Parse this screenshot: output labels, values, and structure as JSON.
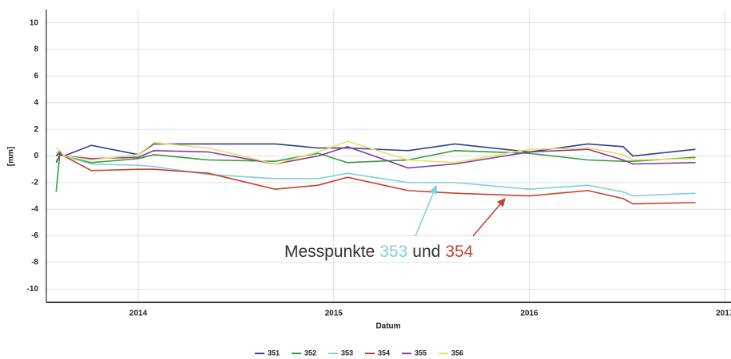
{
  "chart_data": {
    "type": "line",
    "y_label": "[mm]",
    "x_label": "Datum",
    "x": [
      2013.58,
      2013.6,
      2013.62,
      2013.76,
      2014.0,
      2014.08,
      2014.36,
      2014.7,
      2014.92,
      2015.07,
      2015.38,
      2015.62,
      2016.0,
      2016.3,
      2016.48,
      2016.53,
      2016.85
    ],
    "series": [
      {
        "name": "351",
        "color": "#2e3f8f",
        "values": [
          -0.5,
          0.1,
          0,
          0.8,
          0.1,
          0.9,
          0.9,
          0.9,
          0.6,
          0.6,
          0.4,
          0.9,
          0.3,
          0.9,
          0.7,
          0,
          0.5
        ]
      },
      {
        "name": "352",
        "color": "#3a9a3a",
        "values": [
          -2.7,
          0.3,
          0,
          -0.5,
          -0.2,
          0.1,
          -0.3,
          -0.4,
          0.2,
          -0.5,
          -0.3,
          0.4,
          0.2,
          -0.3,
          -0.4,
          -0.4,
          -0.1
        ]
      },
      {
        "name": "353",
        "color": "#7fd0d8",
        "values": [
          0.2,
          0.4,
          0,
          -0.6,
          -0.7,
          -0.8,
          -1.4,
          -1.7,
          -1.7,
          -1.3,
          -2.0,
          -2.0,
          -2.5,
          -2.2,
          -2.7,
          -3.0,
          -2.8
        ]
      },
      {
        "name": "354",
        "color": "#c8402a",
        "values": [
          0,
          0.3,
          0,
          -1.1,
          -1.0,
          -1.0,
          -1.3,
          -2.5,
          -2.2,
          -1.6,
          -2.6,
          -2.8,
          -3.0,
          -2.6,
          -3.2,
          -3.6,
          -3.5
        ]
      },
      {
        "name": "355",
        "color": "#8a3a9a",
        "values": [
          0,
          0.2,
          0,
          -0.2,
          -0.1,
          0.4,
          0.3,
          -0.6,
          0,
          0.7,
          -0.9,
          -0.6,
          0.3,
          0.5,
          -0.3,
          -0.6,
          -0.5
        ]
      },
      {
        "name": "356",
        "color": "#e8e060",
        "values": [
          0.6,
          0.4,
          0,
          -0.3,
          0.1,
          1.0,
          0.6,
          -0.6,
          0.3,
          1.1,
          -0.3,
          -0.5,
          0.5,
          0.6,
          0.1,
          -0.3,
          -0.2
        ]
      }
    ],
    "xlim": [
      2013.53,
      2017.04
    ],
    "xticks": [
      2014,
      2015,
      2016,
      2017
    ],
    "ylim": [
      -11,
      11
    ],
    "yticks": [
      -10,
      -8,
      -6,
      -4,
      -2,
      0,
      2,
      4,
      6,
      8,
      10
    ],
    "grid": true,
    "annotation": {
      "parts": [
        {
          "text": "Messpunkte",
          "color": "#333333"
        },
        {
          "text": "353",
          "color": "#7fd0d8"
        },
        {
          "text": "und",
          "color": "#333333"
        },
        {
          "text": "354",
          "color": "#c8402a"
        }
      ]
    }
  }
}
